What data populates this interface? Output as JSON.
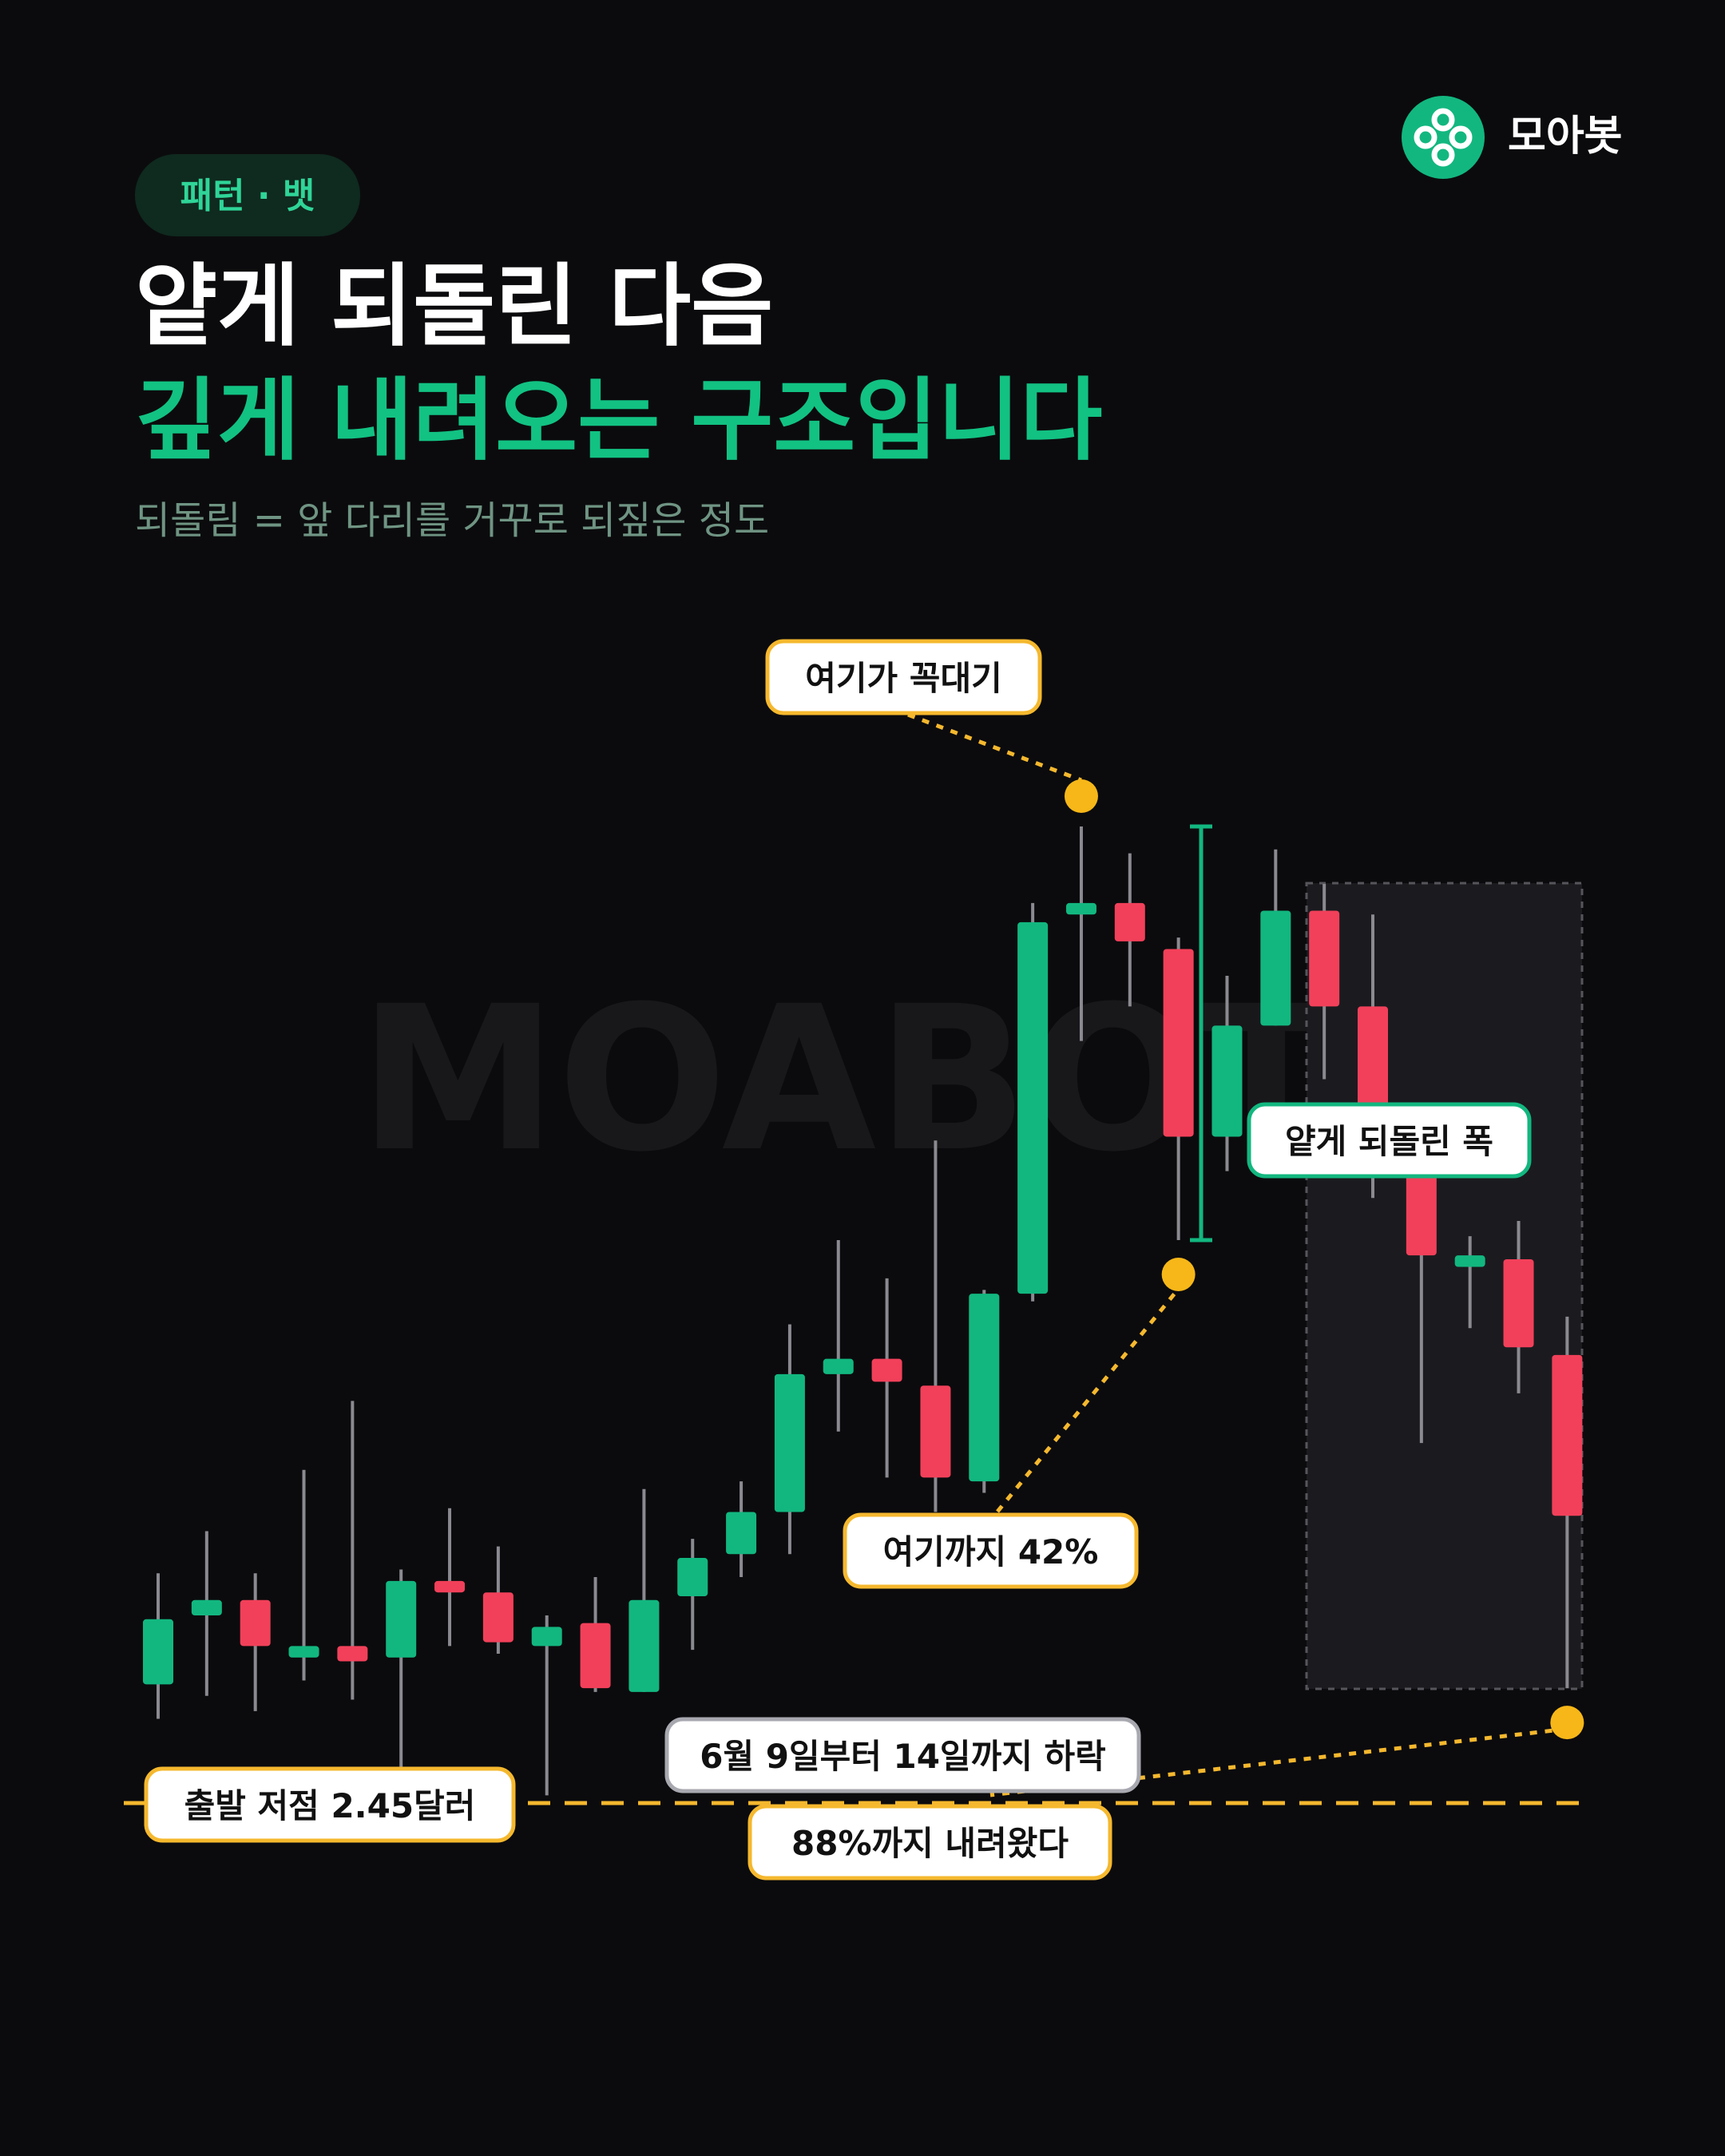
{
  "header": {
    "brand": "모아봇"
  },
  "chart_data": {
    "type": "candlestick",
    "tag": "패턴 · 뱃",
    "title": "얕게 되돌린 다음",
    "title_highlight": "깊게 내려오는 구조입니다",
    "subtitle": "되돌림 = 앞 다리를 거꾸로 되짚은 정도",
    "watermark": "MOABOT",
    "up_color": "#12b77f",
    "down_color": "#f2405a",
    "wick_color": "#8a8a90",
    "ylim": [
      2.45,
      5.0
    ],
    "start_low": 2.45,
    "candles": [
      {
        "open": 2.76,
        "high": 3.05,
        "low": 2.67,
        "close": 2.93
      },
      {
        "open": 2.94,
        "high": 3.16,
        "low": 2.73,
        "close": 2.98
      },
      {
        "open": 2.98,
        "high": 3.05,
        "low": 2.69,
        "close": 2.86
      },
      {
        "open": 2.83,
        "high": 3.32,
        "low": 2.77,
        "close": 2.86
      },
      {
        "open": 2.86,
        "high": 3.5,
        "low": 2.72,
        "close": 2.82
      },
      {
        "open": 2.83,
        "high": 3.06,
        "low": 2.54,
        "close": 3.03
      },
      {
        "open": 3.03,
        "high": 3.22,
        "low": 2.86,
        "close": 3.0
      },
      {
        "open": 3.0,
        "high": 3.12,
        "low": 2.84,
        "close": 2.87
      },
      {
        "open": 2.86,
        "high": 2.94,
        "low": 2.47,
        "close": 2.91
      },
      {
        "open": 2.92,
        "high": 3.04,
        "low": 2.74,
        "close": 2.75
      },
      {
        "open": 2.74,
        "high": 3.27,
        "low": 2.74,
        "close": 2.98
      },
      {
        "open": 2.99,
        "high": 3.14,
        "low": 2.85,
        "close": 3.09
      },
      {
        "open": 3.1,
        "high": 3.29,
        "low": 3.04,
        "close": 3.21
      },
      {
        "open": 3.21,
        "high": 3.7,
        "low": 3.1,
        "close": 3.57
      },
      {
        "open": 3.57,
        "high": 3.92,
        "low": 3.42,
        "close": 3.61
      },
      {
        "open": 3.61,
        "high": 3.82,
        "low": 3.3,
        "close": 3.55
      },
      {
        "open": 3.54,
        "high": 4.18,
        "low": 3.21,
        "close": 3.3
      },
      {
        "open": 3.29,
        "high": 3.79,
        "low": 3.26,
        "close": 3.78
      },
      {
        "open": 3.78,
        "high": 4.8,
        "low": 3.76,
        "close": 4.75
      },
      {
        "open": 4.77,
        "high": 5.0,
        "low": 4.44,
        "close": 4.8
      },
      {
        "open": 4.8,
        "high": 4.93,
        "low": 4.53,
        "close": 4.7
      },
      {
        "open": 4.68,
        "high": 4.71,
        "low": 3.92,
        "close": 4.19
      },
      {
        "open": 4.19,
        "high": 4.61,
        "low": 4.1,
        "close": 4.48
      },
      {
        "open": 4.48,
        "high": 4.94,
        "low": 4.48,
        "close": 4.78
      },
      {
        "open": 4.78,
        "high": 4.85,
        "low": 4.34,
        "close": 4.53
      },
      {
        "open": 4.53,
        "high": 4.77,
        "low": 4.03,
        "close": 4.1
      },
      {
        "open": 4.1,
        "high": 4.18,
        "low": 3.39,
        "close": 3.88
      },
      {
        "open": 3.85,
        "high": 3.93,
        "low": 3.69,
        "close": 3.88
      },
      {
        "open": 3.87,
        "high": 3.97,
        "low": 3.52,
        "close": 3.64
      },
      {
        "open": 3.62,
        "high": 3.72,
        "low": 2.75,
        "close": 3.2
      }
    ],
    "annotations": [
      "여기가 꼭대기",
      "여기까지 42%",
      "얕게 되돌린 폭",
      "출발 저점 2.45달러",
      "6월 9일부터 14일까지 하락",
      "88%까지 내려왔다"
    ]
  }
}
